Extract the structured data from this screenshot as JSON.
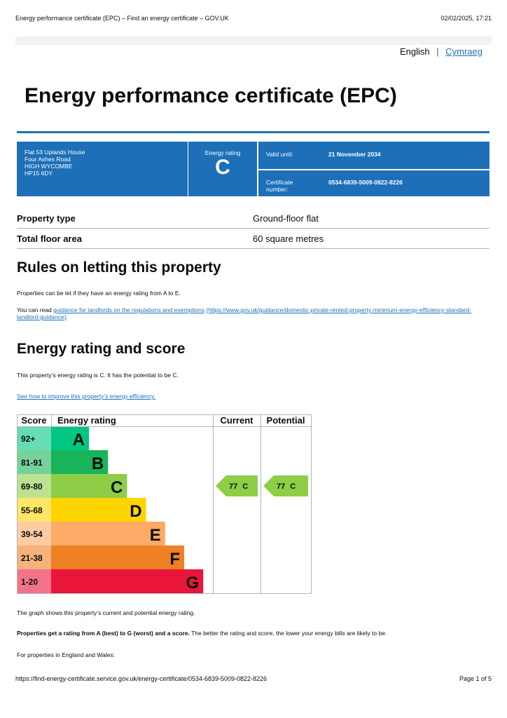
{
  "print_header": {
    "title": "Energy performance certificate (EPC) – Find an energy certificate – GOV.UK",
    "datetime": "02/02/2025, 17:21"
  },
  "language": {
    "current": "English",
    "separator": "|",
    "other": "Cymraeg"
  },
  "title": "Energy performance certificate (EPC)",
  "summary": {
    "address": [
      "Flat 53 Uplands House",
      "Four Ashes Road",
      "HIGH WYCOMBE",
      "HP15 6DY"
    ],
    "rating_label": "Energy rating",
    "rating": "C",
    "valid_label": "Valid until:",
    "valid_value": "21 November 2034",
    "cert_label": "Certificate number:",
    "cert_value": "0534-6839-5009-0822-8226"
  },
  "property": [
    {
      "label": "Property type",
      "value": "Ground-floor flat"
    },
    {
      "label": "Total floor area",
      "value": "60 square metres"
    }
  ],
  "letting": {
    "heading": "Rules on letting this property",
    "p1": "Properties can be let if they have an energy rating from A to E.",
    "p2_prefix": "You can read ",
    "link": "guidance for landlords on the regulations and exemptions",
    "url": "(https://www.gov.uk/guidance/domestic-private-rented-property-minimum-energy-efficiency-standard-landlord-guidance)",
    "p2_suffix": "."
  },
  "rating_section": {
    "heading": "Energy rating and score",
    "p1": "This property’s energy rating is C. It has the potential to be C.",
    "link": "See how to improve this property’s energy efficiency."
  },
  "epc_table": {
    "headers": [
      "Score",
      "Energy rating",
      "Current",
      "Potential"
    ],
    "bands": [
      {
        "score": "92+",
        "letter": "A"
      },
      {
        "score": "81-91",
        "letter": "B"
      },
      {
        "score": "69-80",
        "letter": "C"
      },
      {
        "score": "55-68",
        "letter": "D"
      },
      {
        "score": "39-54",
        "letter": "E"
      },
      {
        "score": "21-38",
        "letter": "F"
      },
      {
        "score": "1-20",
        "letter": "G"
      }
    ],
    "current": {
      "score": 77,
      "letter": "C"
    },
    "potential": {
      "score": 77,
      "letter": "C"
    }
  },
  "notes": {
    "graph": "The graph shows this property’s current and potential energy rating.",
    "bold": "Properties get a rating from A (best) to G (worst) and a score.",
    "rest": " The better the rating and score, the lower your energy bills are likely to be.",
    "england": "For properties in England and Wales:"
  },
  "footer": {
    "url": "https://find-energy-certificate.service.gov.uk/energy-certificate/0534-6839-5009-0822-8226",
    "page": "Page 1 of 5"
  }
}
